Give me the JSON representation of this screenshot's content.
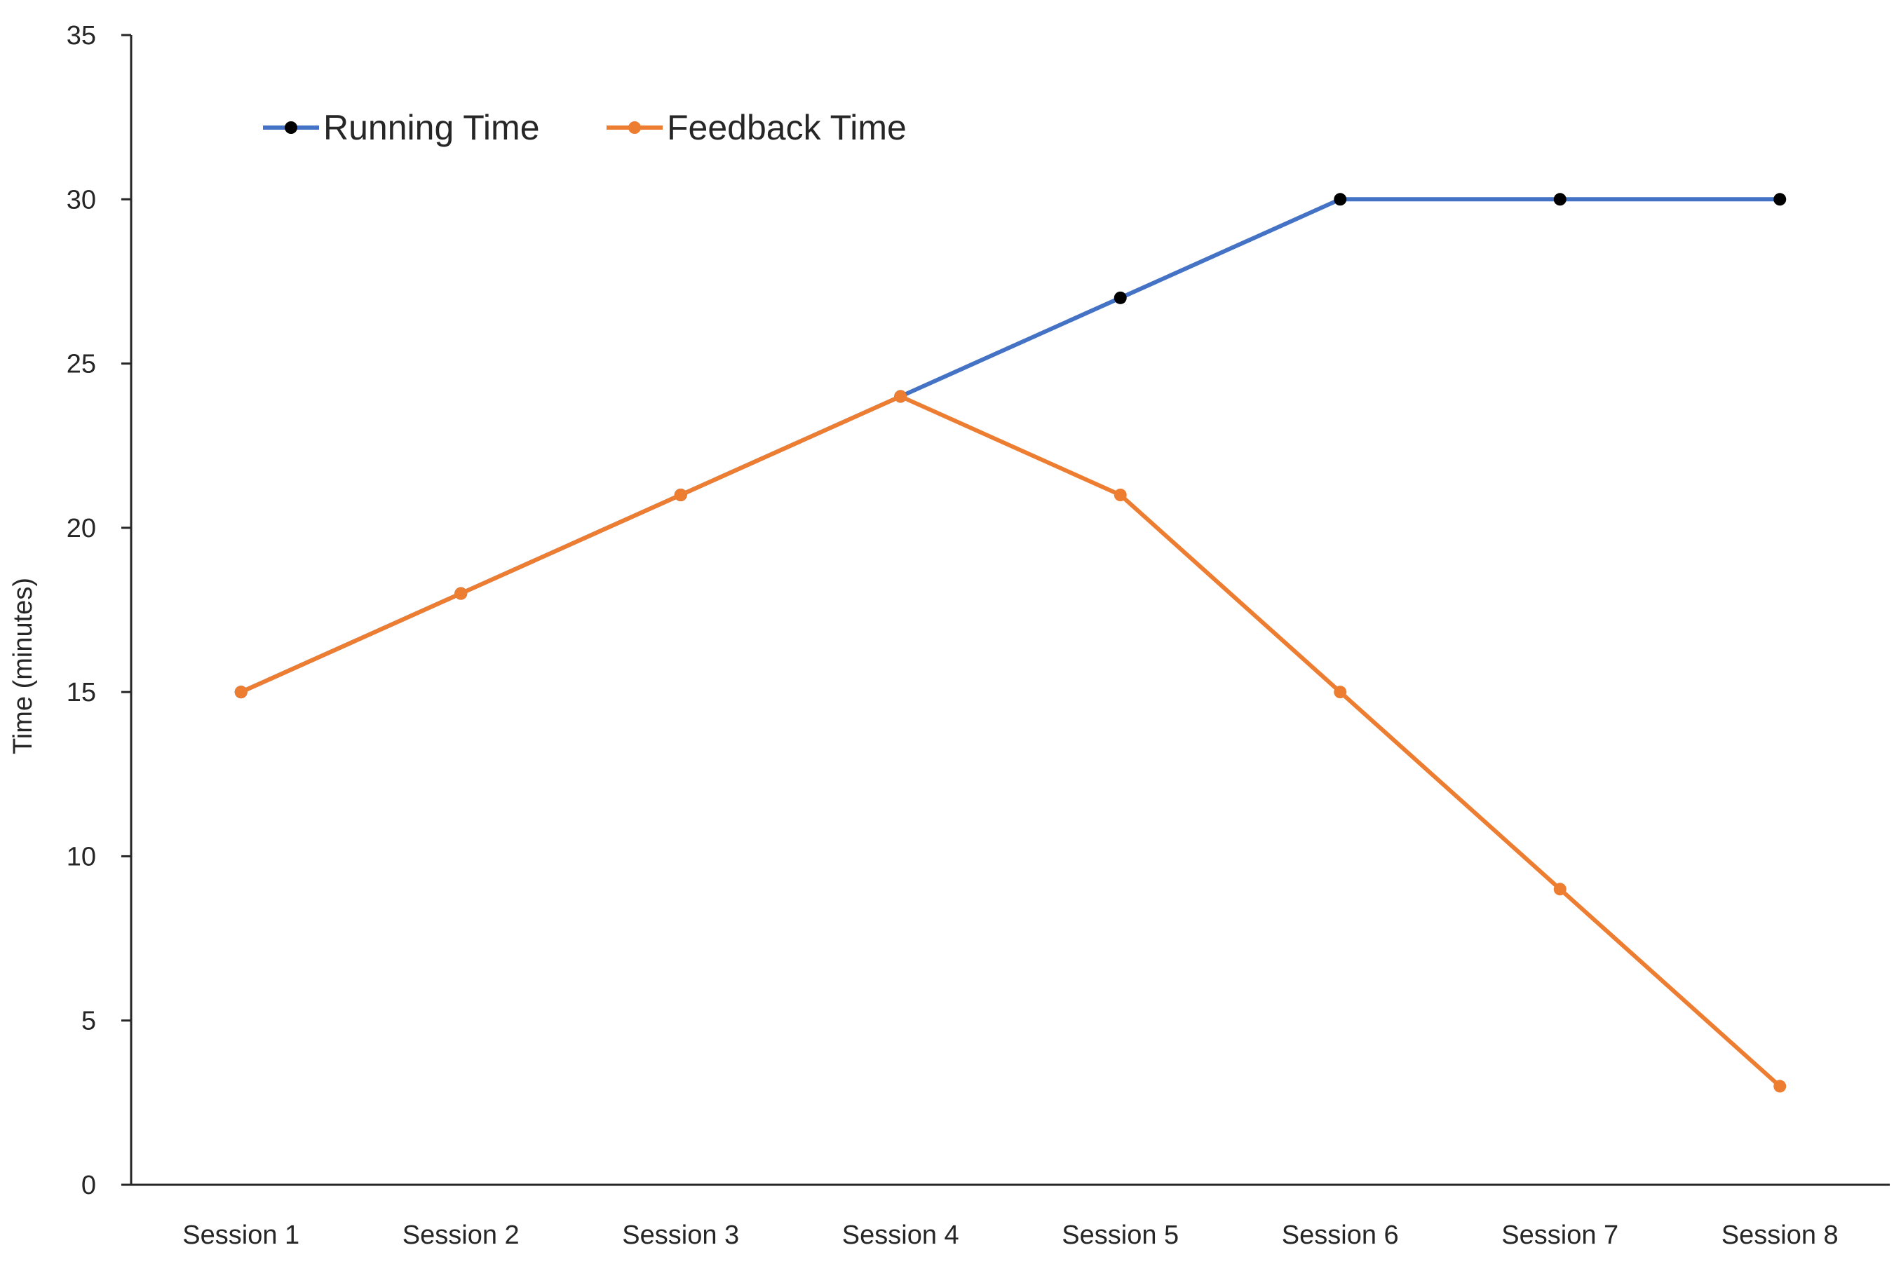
{
  "chart_data": {
    "type": "line",
    "title": "",
    "xlabel": "",
    "ylabel": "Time (minutes)",
    "ylim": [
      0,
      35
    ],
    "yticks": [
      0,
      5,
      10,
      15,
      20,
      25,
      30,
      35
    ],
    "categories": [
      "Session 1",
      "Session 2",
      "Session 3",
      "Session 4",
      "Session 5",
      "Session 6",
      "Session 7",
      "Session 8"
    ],
    "series": [
      {
        "name": "Running Time",
        "color": "#4472C4",
        "marker_color": "#000000",
        "values": [
          15,
          18,
          21,
          24,
          27,
          30,
          30,
          30
        ]
      },
      {
        "name": "Feedback Time",
        "color": "#ED7D31",
        "marker_color": "#ED7D31",
        "values": [
          15,
          18,
          21,
          24,
          21,
          15,
          9,
          3
        ]
      }
    ],
    "grid": false,
    "legend_position": "top-left"
  }
}
